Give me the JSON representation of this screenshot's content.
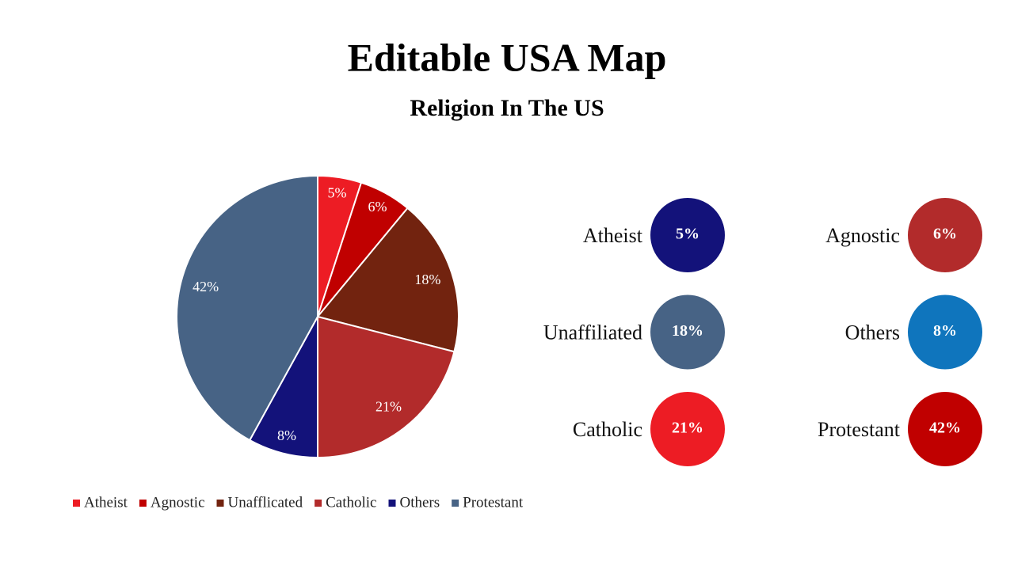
{
  "chart_data": {
    "type": "pie",
    "title": "Editable USA Map",
    "subtitle": "Religion In The US",
    "categories": [
      "Atheist",
      "Agnostic",
      "Unafflicated",
      "Catholic",
      "Others",
      "Protestant"
    ],
    "values": [
      5,
      6,
      18,
      21,
      8,
      42
    ],
    "value_labels": [
      "5%",
      "6%",
      "18%",
      "21%",
      "8%",
      "42%"
    ],
    "colors": [
      "#ed1c24",
      "#c00000",
      "#72230f",
      "#b22b2b",
      "#13127a",
      "#476385"
    ],
    "legend": "bottom"
  },
  "badges": [
    {
      "label": "Atheist",
      "value": "5%",
      "color": "#13127a"
    },
    {
      "label": "Agnostic",
      "value": "6%",
      "color": "#b22b2b"
    },
    {
      "label": "Unaffiliated",
      "value": "18%",
      "color": "#476385"
    },
    {
      "label": "Others",
      "value": "8%",
      "color": "#0f75bd"
    },
    {
      "label": "Catholic",
      "value": "21%",
      "color": "#ed1c24"
    },
    {
      "label": "Protestant",
      "value": "42%",
      "color": "#c00000"
    }
  ]
}
